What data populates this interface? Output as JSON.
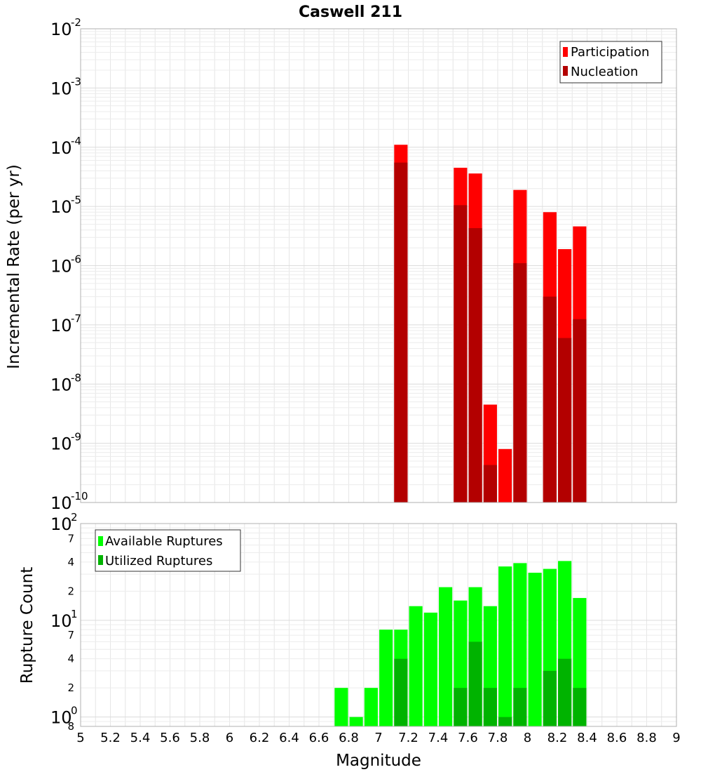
{
  "title": "Caswell 211",
  "xlabel": "Magnitude",
  "x_ticks": [
    "5",
    "5.2",
    "5.4",
    "5.6",
    "5.8",
    "6",
    "6.2",
    "6.4",
    "6.6",
    "6.8",
    "7",
    "7.2",
    "7.4",
    "7.6",
    "7.8",
    "8",
    "8.2",
    "8.4",
    "8.6",
    "8.8",
    "9"
  ],
  "colors": {
    "participation": "#ff0000",
    "nucleation": "#b30000",
    "available": "#00ff00",
    "utilized": "#00b300",
    "grid": "#e6e6e6",
    "frame": "#b0b0b0"
  },
  "chart_data": [
    {
      "type": "bar",
      "title": "Caswell 211",
      "xlabel": "Magnitude",
      "ylabel": "Incremental Rate (per yr)",
      "xlim": [
        5,
        9
      ],
      "ylim": [
        1e-10,
        0.01
      ],
      "yscale": "log",
      "y_ticks": [
        {
          "base": "10",
          "exp": "-10",
          "value": 1e-10
        },
        {
          "base": "10",
          "exp": "-9",
          "value": 1e-09
        },
        {
          "base": "10",
          "exp": "-8",
          "value": 1e-08
        },
        {
          "base": "10",
          "exp": "-7",
          "value": 1e-07
        },
        {
          "base": "10",
          "exp": "-6",
          "value": 1e-06
        },
        {
          "base": "10",
          "exp": "-5",
          "value": 1e-05
        },
        {
          "base": "10",
          "exp": "-4",
          "value": 0.0001
        },
        {
          "base": "10",
          "exp": "-3",
          "value": 0.001
        },
        {
          "base": "10",
          "exp": "-2",
          "value": 0.01
        }
      ],
      "legend_position": "top-right",
      "grid": true,
      "series": [
        {
          "name": "Participation",
          "x": [
            7.15,
            7.55,
            7.65,
            7.75,
            7.85,
            7.95,
            8.15,
            8.25,
            8.35
          ],
          "values": [
            0.00011,
            4.5e-05,
            3.6e-05,
            4.5e-09,
            8e-10,
            1.9e-05,
            8e-06,
            1.9e-06,
            4.6e-06
          ]
        },
        {
          "name": "Nucleation",
          "x": [
            7.15,
            7.55,
            7.65,
            7.75,
            7.95,
            8.15,
            8.25,
            8.35
          ],
          "values": [
            5.5e-05,
            1.05e-05,
            4.3e-06,
            4.3e-10,
            1.1e-06,
            3e-07,
            6e-08,
            1.25e-07
          ]
        }
      ]
    },
    {
      "type": "bar",
      "xlabel": "Magnitude",
      "ylabel": "Rupture Count",
      "xlim": [
        5,
        9
      ],
      "ylim": [
        0.8,
        100
      ],
      "yscale": "log",
      "y_ticks": [
        {
          "base": "10",
          "exp": "0",
          "value": 1
        },
        {
          "base": "10",
          "exp": "1",
          "value": 10
        },
        {
          "base": "10",
          "exp": "2",
          "value": 100
        }
      ],
      "y_minor_ticks": [
        {
          "label": "8",
          "value": 0.8
        },
        {
          "label": "2",
          "value": 2
        },
        {
          "label": "4",
          "value": 4
        },
        {
          "label": "7",
          "value": 7
        },
        {
          "label": "2",
          "value": 20
        },
        {
          "label": "4",
          "value": 40
        },
        {
          "label": "7",
          "value": 70
        }
      ],
      "legend_position": "top-left",
      "grid": true,
      "series": [
        {
          "name": "Available Ruptures",
          "x": [
            6.75,
            6.85,
            6.95,
            7.05,
            7.15,
            7.25,
            7.35,
            7.45,
            7.55,
            7.65,
            7.75,
            7.85,
            7.95,
            8.05,
            8.15,
            8.25,
            8.35
          ],
          "values": [
            2,
            1,
            2,
            8,
            8,
            14,
            12,
            22,
            16,
            22,
            14,
            36,
            39,
            31,
            34,
            41,
            17
          ]
        },
        {
          "name": "Utilized Ruptures",
          "x": [
            7.15,
            7.55,
            7.65,
            7.75,
            7.85,
            7.95,
            8.15,
            8.25,
            8.35
          ],
          "values": [
            4,
            2,
            6,
            2,
            1,
            2,
            3,
            4,
            2
          ]
        }
      ]
    }
  ]
}
